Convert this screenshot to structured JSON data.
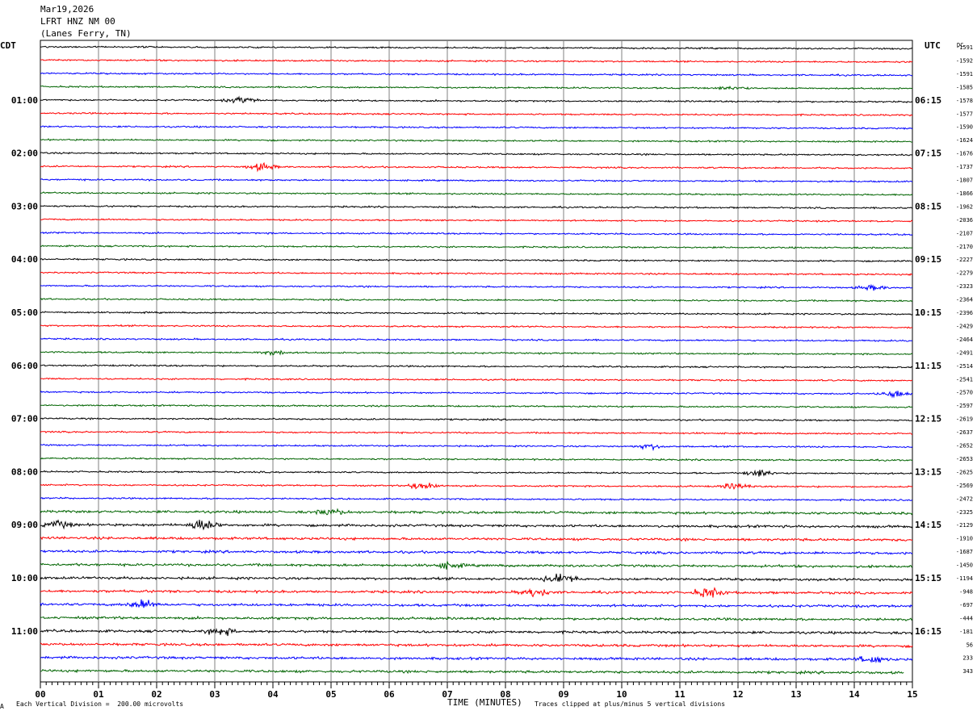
{
  "header": {
    "date": "Mar19,2026",
    "station": "LFRT HNZ NM 00",
    "location": "(Lanes Ferry, TN)"
  },
  "left_axis_label": "CDT",
  "right_axis_label": "UTC",
  "dc_label": "DC",
  "footer": {
    "scale_note": "Each Vertical Division =  200.00 microvolts",
    "x_title": "TIME (MINUTES)",
    "clip_note": "Traces clipped at plus/minus 5 vertical divisions",
    "corner_mark": "A"
  },
  "colors": {
    "cycle": [
      "#000000",
      "#ff0000",
      "#0000ff",
      "#006400"
    ],
    "grid": "#808080"
  },
  "chart_data": {
    "type": "line",
    "title": "LFRT HNZ NM 00",
    "x_label": "TIME (MINUTES)",
    "x_range": [
      0,
      15
    ],
    "x_ticks": [
      "00",
      "01",
      "02",
      "03",
      "04",
      "05",
      "06",
      "07",
      "08",
      "09",
      "10",
      "11",
      "12",
      "13",
      "14",
      "15"
    ],
    "left_time_labels": [
      "01:00",
      "02:00",
      "03:00",
      "04:00",
      "05:00",
      "06:00",
      "07:00",
      "08:00",
      "09:00",
      "10:00",
      "11:00"
    ],
    "right_time_labels": [
      "06:15",
      "07:15",
      "08:15",
      "09:15",
      "10:15",
      "11:15",
      "12:15",
      "13:15",
      "14:15",
      "15:15",
      "16:15"
    ],
    "dc_offsets": [
      "-1591",
      "-1592",
      "-1591",
      "-1585",
      "-1578",
      "-1577",
      "-1590",
      "-1624",
      "-1676",
      "-1737",
      "-1807",
      "-1866",
      "-1962",
      "-2036",
      "-2107",
      "-2170",
      "-2227",
      "-2279",
      "-2323",
      "-2364",
      "-2396",
      "-2429",
      "-2464",
      "-2491",
      "-2514",
      "-2541",
      "-2570",
      "-2597",
      "-2619",
      "-2637",
      "-2652",
      "-2653",
      "-2625",
      "-2569",
      "-2472",
      "-2325",
      "-2129",
      "-1910",
      "-1687",
      "-1450",
      "-1194",
      "-948",
      "-697",
      "-444",
      "-181",
      "56",
      "233",
      "343"
    ],
    "trace_count": 48,
    "trace_interval_minutes": 15,
    "events": [
      {
        "trace": 4,
        "minute": 3.45,
        "amp": 0.5
      },
      {
        "trace": 9,
        "minute": 3.8,
        "amp": 0.6
      },
      {
        "trace": 3,
        "minute": 11.9,
        "amp": 0.3
      },
      {
        "trace": 18,
        "minute": 14.3,
        "amp": 0.4
      },
      {
        "trace": 23,
        "minute": 4.0,
        "amp": 0.4
      },
      {
        "trace": 26,
        "minute": 14.7,
        "amp": 0.6
      },
      {
        "trace": 30,
        "minute": 10.5,
        "amp": 0.4
      },
      {
        "trace": 32,
        "minute": 12.4,
        "amp": 0.6
      },
      {
        "trace": 33,
        "minute": 6.6,
        "amp": 0.8
      },
      {
        "trace": 33,
        "minute": 11.95,
        "amp": 0.5
      },
      {
        "trace": 35,
        "minute": 5.0,
        "amp": 0.5
      },
      {
        "trace": 36,
        "minute": 0.3,
        "amp": 0.6
      },
      {
        "trace": 36,
        "minute": 2.8,
        "amp": 1.0
      },
      {
        "trace": 39,
        "minute": 7.0,
        "amp": 0.5
      },
      {
        "trace": 40,
        "minute": 8.95,
        "amp": 1.0
      },
      {
        "trace": 41,
        "minute": 8.5,
        "amp": 0.7
      },
      {
        "trace": 41,
        "minute": 11.5,
        "amp": 0.8
      },
      {
        "trace": 42,
        "minute": 1.75,
        "amp": 0.8
      },
      {
        "trace": 44,
        "minute": 3.1,
        "amp": 0.6
      },
      {
        "trace": 46,
        "minute": 14.3,
        "amp": 0.6
      }
    ]
  }
}
